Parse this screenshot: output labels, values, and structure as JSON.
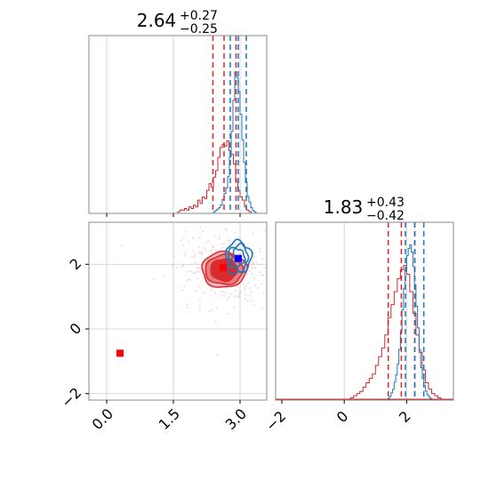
{
  "chart_data": {
    "type": "corner",
    "parameters": [
      "",
      ""
    ],
    "colors": {
      "posterior_red": "#d62728",
      "posterior_blue": "#1f77b4",
      "grid": "#cccccc",
      "frame": "#888888",
      "truth_point": "#ff0000",
      "estimate_point": "#0000ff"
    },
    "panels": [
      {
        "id": "param1-hist",
        "title": {
          "median": "2.64",
          "upper": "+0.27",
          "lower": "−0.25"
        },
        "xlim": [
          -0.4,
          3.6
        ],
        "grid_x": [
          0.0,
          1.5,
          3.0
        ],
        "red_quantiles": [
          2.39,
          2.64,
          2.91
        ],
        "blue_quantiles": [
          2.78,
          2.96,
          3.14
        ],
        "red_series": {
          "bin_start": 1.6,
          "bin_width": 0.05,
          "counts": [
            1,
            2,
            2,
            3,
            2,
            4,
            3,
            5,
            4,
            8,
            6,
            10,
            9,
            14,
            18,
            16,
            22,
            26,
            34,
            40,
            42,
            41,
            44,
            38,
            36,
            30,
            20,
            14,
            10,
            8,
            4,
            2,
            1
          ]
        },
        "blue_series": {
          "bin_start": 2.4,
          "bin_width": 0.04,
          "counts": [
            1,
            2,
            3,
            4,
            6,
            10,
            14,
            18,
            26,
            40,
            58,
            80,
            100,
            96,
            86,
            70,
            52,
            36,
            22,
            12,
            8,
            4,
            2,
            1
          ]
        }
      },
      {
        "id": "param2-hist",
        "title": {
          "median": "1.83",
          "upper": "+0.43",
          "lower": "−0.42"
        },
        "xlim": [
          -2.2,
          3.5
        ],
        "xticks": [
          -2,
          0,
          2
        ],
        "xtick_labels": [
          "−2",
          "0",
          "2"
        ],
        "grid_x": [
          0,
          2
        ],
        "red_quantiles": [
          1.41,
          1.83,
          2.26
        ],
        "blue_quantiles": [
          1.96,
          2.26,
          2.55
        ],
        "red_series": {
          "bin_start": 0.2,
          "bin_width": 0.1,
          "counts": [
            1,
            2,
            3,
            4,
            6,
            8,
            10,
            12,
            16,
            20,
            24,
            30,
            38,
            44,
            50,
            56,
            60,
            62,
            58,
            50,
            40,
            30,
            22,
            14,
            8,
            5,
            3,
            2,
            1
          ]
        },
        "blue_series": {
          "bin_start": 1.4,
          "bin_width": 0.05,
          "counts": [
            1,
            2,
            4,
            6,
            10,
            14,
            20,
            28,
            38,
            50,
            62,
            72,
            80,
            84,
            86,
            82,
            74,
            64,
            52,
            40,
            28,
            18,
            12,
            8,
            5,
            3,
            2,
            1
          ]
        }
      },
      {
        "id": "joint-2d",
        "xlim": [
          -0.4,
          3.6
        ],
        "ylim": [
          -2.2,
          3.3
        ],
        "xticks": [
          0.0,
          1.5,
          3.0
        ],
        "xtick_labels": [
          "0.0",
          "1.5",
          "3.0"
        ],
        "yticks": [
          -2,
          0,
          2
        ],
        "ytick_labels": [
          "−2",
          "0",
          "2"
        ],
        "grid_x": [
          0.0,
          1.5,
          3.0
        ],
        "grid_y": [
          -2,
          0,
          2
        ],
        "red_center": [
          2.64,
          1.83
        ],
        "red_contour_sigmas": [
          [
            0.5,
            0.55
          ],
          [
            0.42,
            0.46
          ],
          [
            0.3,
            0.34
          ]
        ],
        "blue_center": [
          2.96,
          2.26
        ],
        "blue_contour_sigmas": [
          [
            0.28,
            0.5
          ],
          [
            0.22,
            0.4
          ],
          [
            0.14,
            0.26
          ]
        ],
        "truth_point": [
          0.3,
          -0.75
        ],
        "red_estimate_point": [
          2.62,
          1.9
        ],
        "blue_estimate_point": [
          2.96,
          2.18
        ]
      }
    ]
  }
}
